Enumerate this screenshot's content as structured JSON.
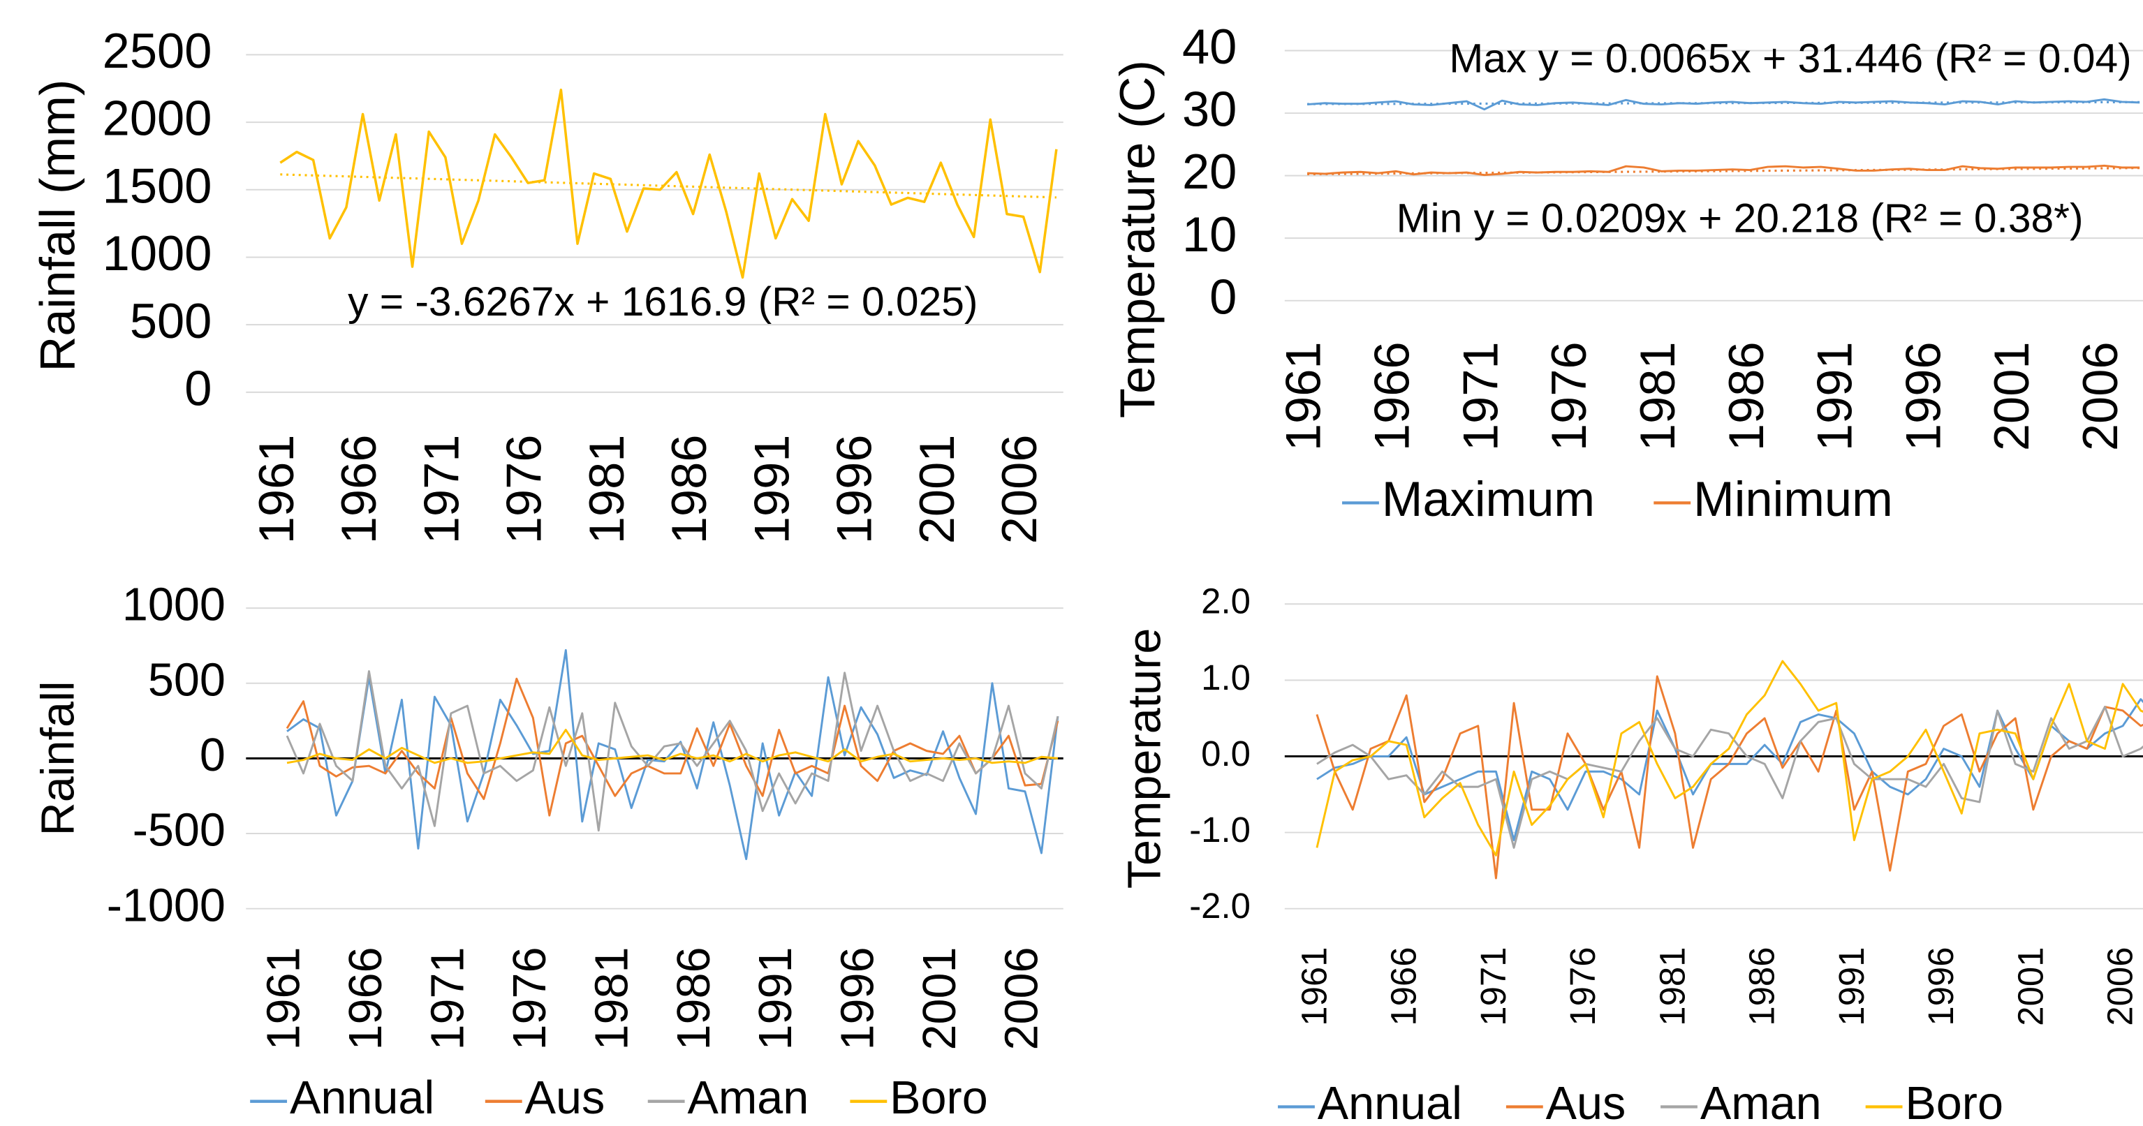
{
  "chart_data": [
    {
      "type": "line",
      "ylabel": "Rainfall (mm)",
      "categories": [
        "1961",
        null,
        null,
        null,
        null,
        "1966",
        null,
        null,
        null,
        null,
        "1971",
        null,
        null,
        null,
        null,
        "1976",
        null,
        null,
        null,
        null,
        "1981",
        null,
        null,
        null,
        null,
        "1986",
        null,
        null,
        null,
        null,
        "1991",
        null,
        null,
        null,
        null,
        "1996",
        null,
        null,
        null,
        null,
        "2001",
        null,
        null,
        null,
        null,
        "2006",
        null,
        null
      ],
      "values": [
        1700,
        1780,
        1720,
        1140,
        1370,
        2060,
        1420,
        1910,
        930,
        1930,
        1740,
        1100,
        1420,
        1910,
        1740,
        1550,
        1570,
        2240,
        1100,
        1620,
        1580,
        1190,
        1510,
        1500,
        1630,
        1320,
        1760,
        1340,
        850,
        1620,
        1140,
        1430,
        1270,
        2060,
        1540,
        1860,
        1680,
        1390,
        1440,
        1410,
        1700,
        1390,
        1150,
        2020,
        1320,
        1300,
        890,
        1800
      ],
      "color": "#FFC000",
      "trendline": {
        "slope": -3.6267,
        "intercept": 1616.9
      },
      "annotations": [
        "y = -3.6267x + 1616.9 (R² = 0.025)"
      ],
      "ylim": [
        0,
        2500
      ],
      "yticks": [
        0,
        500,
        1000,
        1500,
        2000,
        2500
      ],
      "grid": true
    },
    {
      "type": "line",
      "ylabel": "Temperature (C)",
      "categories": [
        "1961",
        null,
        null,
        null,
        null,
        "1966",
        null,
        null,
        null,
        null,
        "1971",
        null,
        null,
        null,
        null,
        "1976",
        null,
        null,
        null,
        null,
        "1981",
        null,
        null,
        null,
        null,
        "1986",
        null,
        null,
        null,
        null,
        "1991",
        null,
        null,
        null,
        null,
        "1996",
        null,
        null,
        null,
        null,
        "2001",
        null,
        null,
        null,
        null,
        "2006",
        null,
        null
      ],
      "series": [
        {
          "name": "Maximum",
          "color": "#5B9BD5",
          "trendline": {
            "slope": 0.0065,
            "intercept": 31.446
          },
          "values": [
            31.4,
            31.6,
            31.5,
            31.5,
            31.7,
            31.9,
            31.4,
            31.3,
            31.6,
            31.9,
            30.6,
            32.0,
            31.4,
            31.3,
            31.6,
            31.7,
            31.5,
            31.3,
            32.1,
            31.5,
            31.4,
            31.6,
            31.5,
            31.7,
            31.8,
            31.6,
            31.7,
            31.8,
            31.6,
            31.5,
            31.8,
            31.7,
            31.8,
            31.9,
            31.7,
            31.6,
            31.4,
            31.9,
            31.8,
            31.4,
            31.9,
            31.7,
            31.8,
            31.9,
            31.8,
            32.2,
            31.8,
            31.7
          ]
        },
        {
          "name": "Minimum",
          "color": "#ED7D31",
          "trendline": {
            "slope": 0.0209,
            "intercept": 20.218
          },
          "values": [
            20.4,
            20.3,
            20.5,
            20.6,
            20.4,
            20.7,
            20.2,
            20.5,
            20.4,
            20.5,
            20.1,
            20.3,
            20.6,
            20.5,
            20.6,
            20.6,
            20.7,
            20.6,
            21.5,
            21.3,
            20.7,
            20.8,
            20.8,
            20.9,
            21.0,
            20.9,
            21.4,
            21.5,
            21.3,
            21.4,
            21.1,
            20.8,
            20.8,
            21.0,
            21.1,
            20.9,
            20.9,
            21.5,
            21.2,
            21.1,
            21.3,
            21.3,
            21.3,
            21.4,
            21.4,
            21.6,
            21.3,
            21.3
          ]
        }
      ],
      "annotations": [
        "Max y = 0.0065x + 31.446 (R² = 0.04)",
        "Min y = 0.0209x + 20.218 (R² = 0.38*)"
      ],
      "ylim": [
        0,
        40
      ],
      "yticks": [
        0,
        10,
        20,
        30,
        40
      ],
      "grid": true,
      "legend": "bottom"
    },
    {
      "type": "line",
      "ylabel": "Rainfall",
      "categories": [
        "1961",
        null,
        null,
        null,
        null,
        "1966",
        null,
        null,
        null,
        null,
        "1971",
        null,
        null,
        null,
        null,
        "1976",
        null,
        null,
        null,
        null,
        "1981",
        null,
        null,
        null,
        null,
        "1986",
        null,
        null,
        null,
        null,
        "1991",
        null,
        null,
        null,
        null,
        "1996",
        null,
        null,
        null,
        null,
        "2001",
        null,
        null,
        null,
        null,
        "2006",
        null,
        null
      ],
      "series": [
        {
          "name": "Annual",
          "color": "#5B9BD5",
          "values": [
            180,
            260,
            200,
            -380,
            -150,
            540,
            -100,
            390,
            -600,
            410,
            220,
            -420,
            -100,
            390,
            220,
            30,
            50,
            720,
            -420,
            100,
            60,
            -330,
            -10,
            -20,
            110,
            -200,
            240,
            -180,
            -670,
            100,
            -380,
            -90,
            -250,
            540,
            20,
            340,
            160,
            -130,
            -80,
            -110,
            180,
            -130,
            -370,
            500,
            -200,
            -220,
            -630,
            280
          ]
        },
        {
          "name": "Aus",
          "color": "#ED7D31",
          "values": [
            200,
            380,
            -50,
            -120,
            -60,
            -50,
            -100,
            50,
            -100,
            -200,
            270,
            -100,
            -270,
            100,
            530,
            270,
            -380,
            100,
            150,
            -50,
            -250,
            -100,
            -50,
            -100,
            -100,
            200,
            -50,
            230,
            -50,
            -250,
            190,
            -100,
            -50,
            -100,
            350,
            -50,
            -150,
            50,
            100,
            50,
            30,
            150,
            -100,
            0,
            150,
            -180,
            -170,
            250
          ]
        },
        {
          "name": "Aman",
          "color": "#A5A5A5",
          "values": [
            150,
            -100,
            230,
            -50,
            -150,
            580,
            -50,
            -200,
            -50,
            -450,
            300,
            350,
            -100,
            -50,
            -150,
            -80,
            340,
            -50,
            300,
            -480,
            370,
            80,
            -50,
            80,
            100,
            -50,
            100,
            250,
            50,
            -350,
            -100,
            -300,
            -100,
            -150,
            570,
            50,
            350,
            50,
            -150,
            -100,
            -150,
            100,
            -100,
            0,
            350,
            -100,
            -200,
            280
          ]
        },
        {
          "name": "Boro",
          "color": "#FFC000",
          "values": [
            -30,
            -10,
            30,
            0,
            -10,
            60,
            0,
            70,
            20,
            -30,
            0,
            -30,
            -20,
            0,
            20,
            40,
            30,
            190,
            20,
            -10,
            0,
            10,
            20,
            -10,
            30,
            0,
            20,
            -20,
            30,
            -20,
            20,
            40,
            10,
            -20,
            60,
            -20,
            10,
            30,
            -20,
            -10,
            0,
            -10,
            0,
            -30,
            -20,
            -30,
            10,
            0
          ]
        }
      ],
      "ylim": [
        -1000,
        1000
      ],
      "yticks": [
        -1000,
        -500,
        0,
        500,
        1000
      ],
      "grid": true,
      "legend": "bottom"
    },
    {
      "type": "line",
      "ylabel": "Temperature",
      "categories": [
        "1961",
        null,
        null,
        null,
        null,
        "1966",
        null,
        null,
        null,
        null,
        "1971",
        null,
        null,
        null,
        null,
        "1976",
        null,
        null,
        null,
        null,
        "1981",
        null,
        null,
        null,
        null,
        "1986",
        null,
        null,
        null,
        null,
        "1991",
        null,
        null,
        null,
        null,
        "1996",
        null,
        null,
        null,
        null,
        "2001",
        null,
        null,
        null,
        null,
        "2006",
        null,
        null
      ],
      "series": [
        {
          "name": "Annual",
          "color": "#5B9BD5",
          "values": [
            -0.3,
            -0.15,
            -0.1,
            0.0,
            0.0,
            0.25,
            -0.5,
            -0.4,
            -0.3,
            -0.2,
            -0.2,
            -1.1,
            -0.2,
            -0.3,
            -0.7,
            -0.2,
            -0.2,
            -0.3,
            -0.5,
            0.6,
            0.1,
            -0.5,
            -0.1,
            -0.1,
            -0.1,
            0.15,
            -0.1,
            0.45,
            0.55,
            0.5,
            0.3,
            -0.2,
            -0.4,
            -0.5,
            -0.3,
            0.1,
            0.0,
            -0.4,
            0.6,
            0.1,
            -0.3,
            0.4,
            0.2,
            0.1,
            0.3,
            0.4,
            0.75,
            0.5
          ]
        },
        {
          "name": "Aus",
          "color": "#ED7D31",
          "values": [
            0.55,
            -0.2,
            -0.7,
            0.1,
            0.2,
            0.8,
            -0.6,
            -0.3,
            0.3,
            0.4,
            -1.6,
            0.7,
            -0.7,
            -0.7,
            0.3,
            -0.1,
            -0.7,
            -0.2,
            -1.2,
            1.05,
            0.3,
            -1.2,
            -0.3,
            -0.1,
            0.3,
            0.5,
            -0.15,
            0.2,
            -0.2,
            0.6,
            -0.7,
            -0.2,
            -1.5,
            -0.2,
            -0.1,
            0.4,
            0.55,
            -0.2,
            0.3,
            0.5,
            -0.7,
            0.0,
            0.2,
            0.1,
            0.65,
            0.6,
            0.4,
            0.5
          ]
        },
        {
          "name": "Aman",
          "color": "#A5A5A5",
          "values": [
            -0.1,
            0.05,
            0.15,
            0.0,
            -0.3,
            -0.25,
            -0.5,
            -0.2,
            -0.4,
            -0.4,
            -0.3,
            -1.2,
            -0.3,
            -0.2,
            -0.3,
            -0.1,
            -0.15,
            -0.2,
            0.2,
            0.5,
            0.1,
            0.0,
            0.35,
            0.3,
            0.0,
            -0.1,
            -0.55,
            0.2,
            0.45,
            0.5,
            -0.1,
            -0.3,
            -0.3,
            -0.3,
            -0.4,
            -0.1,
            -0.55,
            -0.6,
            0.6,
            -0.1,
            -0.2,
            0.5,
            0.1,
            0.2,
            0.65,
            0.0,
            0.1,
            0.3
          ]
        },
        {
          "name": "Boro",
          "color": "#FFC000",
          "values": [
            -1.2,
            -0.2,
            -0.05,
            0.0,
            0.2,
            0.15,
            -0.8,
            -0.55,
            -0.35,
            -0.9,
            -1.3,
            -0.2,
            -0.9,
            -0.65,
            -0.3,
            -0.1,
            -0.8,
            0.3,
            0.45,
            -0.1,
            -0.55,
            -0.4,
            -0.1,
            0.1,
            0.55,
            0.8,
            1.25,
            0.95,
            0.6,
            0.7,
            -1.1,
            -0.3,
            -0.2,
            0.0,
            0.35,
            -0.2,
            -0.75,
            0.3,
            0.35,
            0.3,
            -0.3,
            0.4,
            0.95,
            0.2,
            0.1,
            0.95,
            0.6,
            0.5
          ]
        }
      ],
      "ylim": [
        -2,
        2
      ],
      "yticks": [
        {
          "value": -2,
          "label": "-2.0"
        },
        {
          "value": -1,
          "label": "-1.0"
        },
        {
          "value": 0,
          "label": "0.0"
        },
        {
          "value": 1,
          "label": "1.0"
        },
        {
          "value": 2,
          "label": "2.0"
        }
      ],
      "grid": true,
      "legend": "bottom"
    }
  ]
}
